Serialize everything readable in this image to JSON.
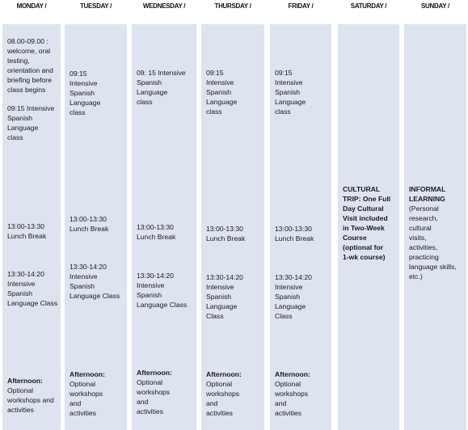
{
  "days": [
    {
      "name": "MONDAY /",
      "blocks": [
        {
          "text": "08.00-09.00 :\nwelcome, oral\ntesting,\norientation and\nbriefing before\nclass begins"
        },
        {
          "text": "09:15 Intensive\nSpanish\nLanguage\nclass"
        },
        {
          "text": "13:00-13:30\nLunch Break"
        },
        {
          "text": "13:30-14:20\nIntensive\nSpanish\nLanguage Class"
        },
        {
          "heading": "Afternoon:",
          "text": "Optional\nworkshops and\nactivities"
        }
      ]
    },
    {
      "name": "TUESDAY /",
      "blocks": [
        {
          "text": "09:15\nIntensive\nSpanish\nLanguage\nclass"
        },
        {
          "text": "13:00-13:30\nLunch Break"
        },
        {
          "text": "13:30-14:20\nIntensive\nSpanish\nLanguage Class"
        },
        {
          "heading": "Afternoon:",
          "text": "Optional\nworkshops\nand\nactivities"
        }
      ]
    },
    {
      "name": "WEDNESDAY /",
      "blocks": [
        {
          "text": "09: 15 Intensive\nSpanish\nLanguage\nclass"
        },
        {
          "text": "13:00-13:30\nLunch Break"
        },
        {
          "text": "13:30-14:20\nIntensive\nSpanish\nLanguage Class"
        },
        {
          "heading": "Afternoon:",
          "text": "Optional\nworkshops\nand\nactivities"
        }
      ]
    },
    {
      "name": "THURSDAY /",
      "blocks": [
        {
          "text": "09:15\nIntensive\nSpanish\nLanguage\nclass"
        },
        {
          "text": "13:00-13:30\nLunch Break"
        },
        {
          "text": "13:30-14:20\nIntensive\nSpanish\nLanguage\nClass"
        },
        {
          "heading": "Afternoon:",
          "text": "Optional\nworkshops\nand\nactivities"
        }
      ]
    },
    {
      "name": "FRIDAY /",
      "blocks": [
        {
          "text": "09:15\nIntensive\nSpanish\nLanguage\nclass"
        },
        {
          "text": "13:00-13:30\nLunch Break"
        },
        {
          "text": "13:30-14:20\nIntensive\nSpanish\nLanguage\nClass"
        },
        {
          "heading": "Afternoon:",
          "text": "Optional\nworkshops\nand\nactivities"
        }
      ]
    },
    {
      "name": "SATURDAY /",
      "blocks": [
        {
          "heading": "CULTURAL\nTRIP: One Full\nDay Cultural\nVisit included\nin Two-Week\nCourse\n(optional for\n1-wk course)"
        }
      ]
    },
    {
      "name": "SUNDAY /",
      "blocks": [
        {
          "heading": "INFORMAL\nLEARNING",
          "text": "(Personal\nresearch,\ncultural\nvisits,\nactivities,\npracticing\nlanguage skills,\netc.)"
        }
      ]
    }
  ]
}
